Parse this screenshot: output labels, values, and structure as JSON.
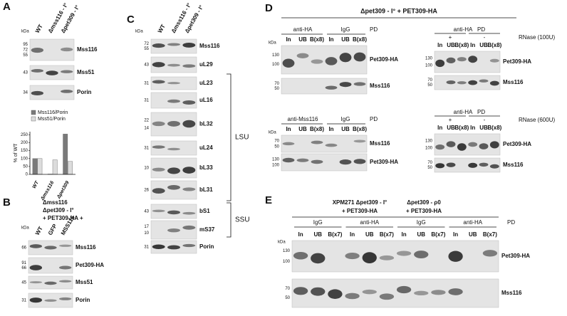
{
  "panels": {
    "A": {
      "letter": "A",
      "kda": "kDa",
      "lanes": [
        "WT",
        "Δmss116 - I°",
        "Δpet309 - I°"
      ],
      "blots": [
        {
          "markers": [
            "95",
            "72",
            "55"
          ],
          "label": "Mss116"
        },
        {
          "markers": [
            "43"
          ],
          "label": "Mss51"
        },
        {
          "markers": [
            "34"
          ],
          "label": "Porin"
        }
      ],
      "chart": {
        "type": "bar",
        "ylabel": "% of WT",
        "categories": [
          "WT",
          "Δmss116",
          "Δpet309"
        ],
        "series": [
          {
            "name": "Mss116/Porin",
            "color": "#7a7a7a",
            "values": [
              100,
              2,
              255
            ]
          },
          {
            "name": "Mss51/Porin",
            "color": "#dcdcdc",
            "values": [
              100,
              92,
              82
            ]
          }
        ],
        "ylim": [
          0,
          270
        ],
        "yticks": [
          0,
          50,
          100,
          150,
          200,
          250
        ]
      }
    },
    "B": {
      "letter": "B",
      "header": [
        "Δmss116",
        "Δpet309 - I°",
        "+ PET309-HA +"
      ],
      "kda": "kDa",
      "lanes": [
        "WT",
        "GFP",
        "MSS116"
      ],
      "blots": [
        {
          "markers": [
            "66"
          ],
          "label": "Mss116"
        },
        {
          "markers": [
            "91",
            "66"
          ],
          "label": "Pet309-HA"
        },
        {
          "markers": [
            "45"
          ],
          "label": "Mss51"
        },
        {
          "markers": [
            "31"
          ],
          "label": "Porin"
        }
      ]
    },
    "C": {
      "letter": "C",
      "kda": "kDa",
      "lanes": [
        "WT",
        "Δmss116 - I°",
        "Δpet309 - I°"
      ],
      "blots": [
        {
          "markers": [
            "72",
            "55"
          ],
          "label": "Mss116"
        },
        {
          "markers": [
            "43"
          ],
          "label": "uL29"
        },
        {
          "markers": [
            "31"
          ],
          "label": "uL23"
        },
        {
          "markers": [
            "31"
          ],
          "label": "uL16"
        },
        {
          "markers": [
            "22",
            "14"
          ],
          "label": "bL32"
        },
        {
          "markers": [
            "31"
          ],
          "label": "uL24"
        },
        {
          "markers": [
            "10"
          ],
          "label": "bL33"
        },
        {
          "markers": [
            "26"
          ],
          "label": "bL31"
        },
        {
          "markers": [
            "43"
          ],
          "label": "bS1"
        },
        {
          "markers": [
            "17",
            "10"
          ],
          "label": "mS37"
        },
        {
          "markers": [
            "31"
          ],
          "label": "Porin"
        }
      ],
      "groups": [
        "LSU",
        "SSU"
      ]
    },
    "D": {
      "letter": "D",
      "title": "Δpet309 - I° + PET309-HA",
      "kda": "kDa",
      "lanes": [
        "In",
        "UB",
        "B(x8)"
      ],
      "pd": "PD",
      "blocks": [
        {
          "groups": [
            "anti-HA",
            "IgG"
          ],
          "blots": [
            {
              "markers": [
                "130",
                "100"
              ],
              "label": "Pet309-HA"
            },
            {
              "markers": [
                "70",
                "50"
              ],
              "label": "Mss116"
            }
          ]
        },
        {
          "groups": [
            "anti-Mss116",
            "IgG"
          ],
          "blots": [
            {
              "markers": [
                "70",
                "50"
              ],
              "label": "Mss116"
            },
            {
              "markers": [
                "130",
                "100"
              ],
              "label": "Pet309-HA"
            }
          ]
        },
        {
          "antibody": "anti-HA",
          "signs": [
            "+",
            "-"
          ],
          "rnase": "RNase (100U)",
          "blots": [
            {
              "markers": [
                "130",
                "100"
              ],
              "label": "Pet309-HA"
            },
            {
              "markers": [
                "70",
                "50"
              ],
              "label": "Mss116"
            }
          ]
        },
        {
          "antibody": "anti-HA",
          "signs": [
            "+",
            "-"
          ],
          "rnase": "RNase (600U)",
          "blots": [
            {
              "markers": [
                "130",
                "100"
              ],
              "label": "Pet309-HA"
            },
            {
              "markers": [
                "70",
                "50"
              ],
              "label": "Mss116"
            }
          ]
        }
      ]
    },
    "E": {
      "letter": "E",
      "strains": [
        [
          "XPM271 Δpet309 - I°",
          "+ PET309-HA"
        ],
        [
          "Δpet309 - ρ0",
          "+ PET309-HA"
        ]
      ],
      "groups": [
        "IgG",
        "anti-HA",
        "IgG",
        "anti-HA"
      ],
      "pd": "PD",
      "kda": "kDa",
      "lanes": [
        "In",
        "UB",
        "B(x7)"
      ],
      "blots": [
        {
          "markers": [
            "130",
            "100"
          ],
          "label": "Pet309-HA"
        },
        {
          "markers": [
            "70",
            "50"
          ],
          "label": "Mss116"
        }
      ]
    }
  }
}
